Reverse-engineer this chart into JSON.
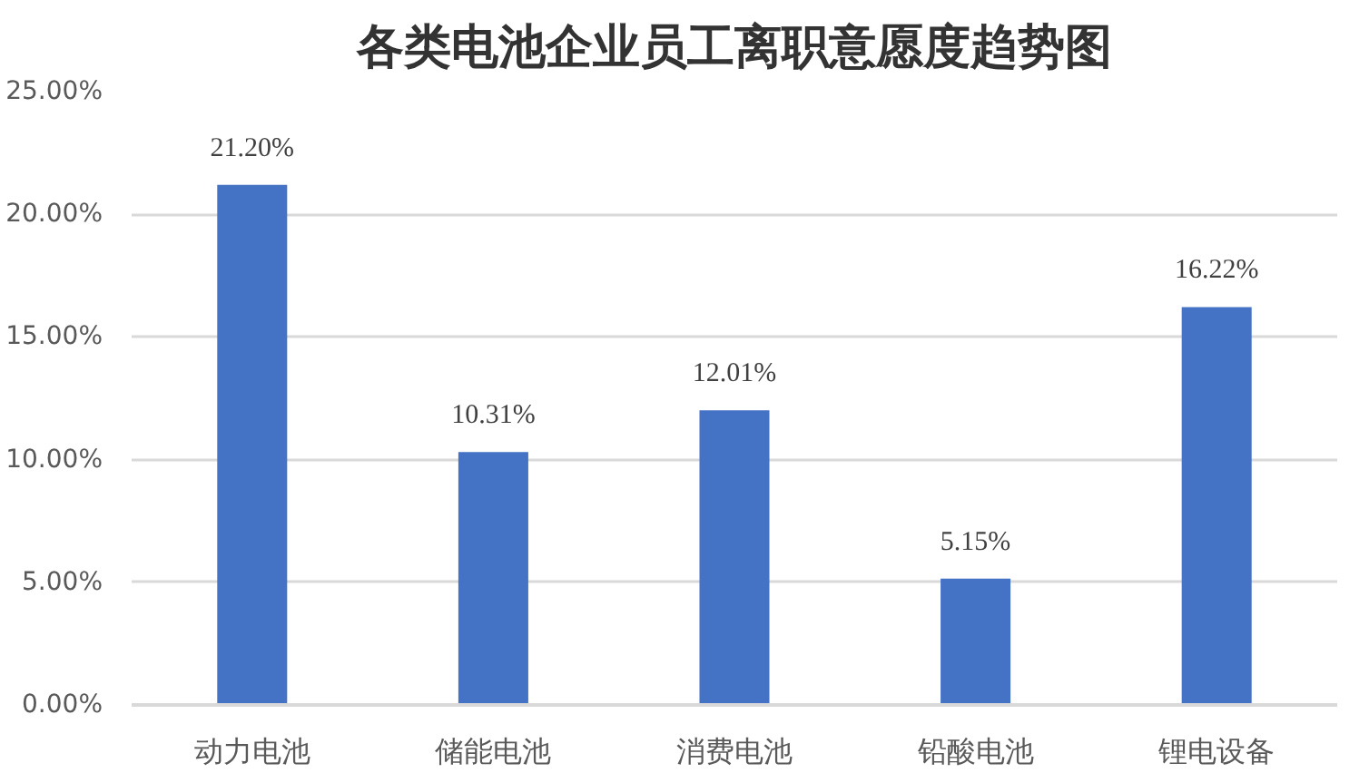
{
  "chart_data": {
    "type": "bar",
    "title": "各类电池企业员工离职意愿度趋势图",
    "categories": [
      "动力电池",
      "储能电池",
      "消费电池",
      "铅酸电池",
      "锂电设备"
    ],
    "values": [
      21.2,
      10.31,
      12.01,
      5.15,
      16.22
    ],
    "value_labels": [
      "21.20%",
      "10.31%",
      "12.01%",
      "5.15%",
      "16.22%"
    ],
    "color": "#4472c4",
    "ylim": [
      0,
      25
    ],
    "yticks": [
      {
        "value": 0,
        "label": "0.00%"
      },
      {
        "value": 5,
        "label": "5.00%"
      },
      {
        "value": 10,
        "label": "10.00%"
      },
      {
        "value": 15,
        "label": "15.00%"
      },
      {
        "value": 20,
        "label": "20.00%"
      },
      {
        "value": 25,
        "label": "25.00%"
      }
    ],
    "grid": "y"
  }
}
